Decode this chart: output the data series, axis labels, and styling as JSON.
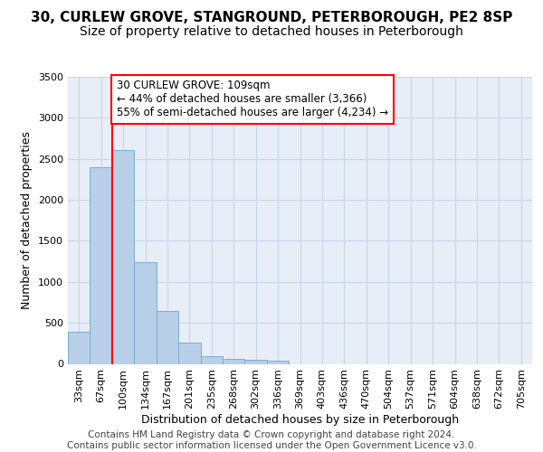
{
  "title_line1": "30, CURLEW GROVE, STANGROUND, PETERBOROUGH, PE2 8SP",
  "title_line2": "Size of property relative to detached houses in Peterborough",
  "xlabel": "Distribution of detached houses by size in Peterborough",
  "ylabel": "Number of detached properties",
  "footer_line1": "Contains HM Land Registry data © Crown copyright and database right 2024.",
  "footer_line2": "Contains public sector information licensed under the Open Government Licence v3.0.",
  "bar_labels": [
    "33sqm",
    "67sqm",
    "100sqm",
    "134sqm",
    "167sqm",
    "201sqm",
    "235sqm",
    "268sqm",
    "302sqm",
    "336sqm",
    "369sqm",
    "403sqm",
    "436sqm",
    "470sqm",
    "504sqm",
    "537sqm",
    "571sqm",
    "604sqm",
    "638sqm",
    "672sqm",
    "705sqm"
  ],
  "bar_values": [
    390,
    2400,
    2610,
    1240,
    640,
    255,
    90,
    60,
    55,
    35,
    0,
    0,
    0,
    0,
    0,
    0,
    0,
    0,
    0,
    0,
    0
  ],
  "bar_color": "#b8cfe8",
  "bar_edgecolor": "#7aadd4",
  "grid_color": "#c8d4e8",
  "background_color": "#e8eef8",
  "annotation_line1": "30 CURLEW GROVE: 109sqm",
  "annotation_line2": "← 44% of detached houses are smaller (3,366)",
  "annotation_line3": "55% of semi-detached houses are larger (4,234) →",
  "vline_x": 1.5,
  "vline_color": "red",
  "ylim": [
    0,
    3500
  ],
  "yticks": [
    0,
    500,
    1000,
    1500,
    2000,
    2500,
    3000,
    3500
  ],
  "annotation_box_facecolor": "white",
  "annotation_box_edgecolor": "red",
  "title1_fontsize": 11,
  "title2_fontsize": 10,
  "axis_label_fontsize": 9,
  "tick_fontsize": 8,
  "footer_fontsize": 7.5,
  "annotation_fontsize": 8.5
}
